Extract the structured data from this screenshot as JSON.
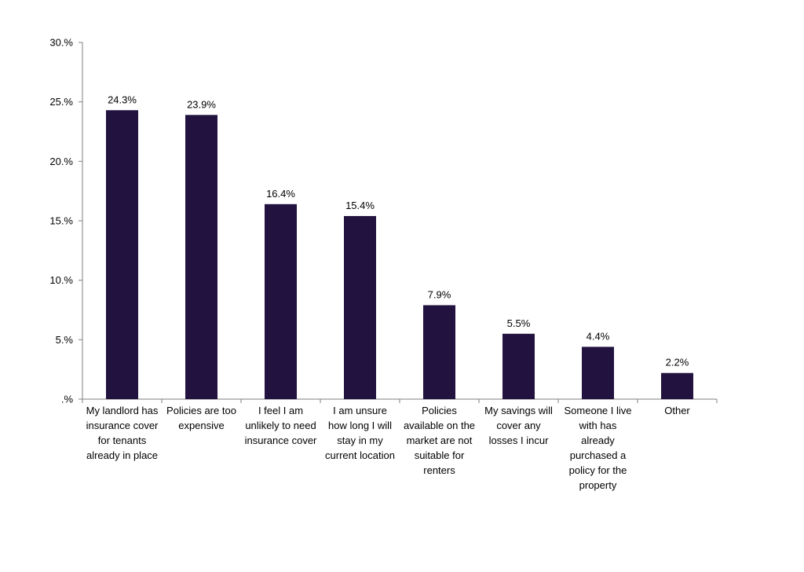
{
  "chart_data": {
    "type": "bar",
    "title": "",
    "xlabel": "",
    "ylabel": "",
    "ylim": [
      0,
      30
    ],
    "y_ticks": [
      0,
      5,
      10,
      15,
      20,
      25,
      30
    ],
    "y_tick_labels": [
      ".%",
      "5.%",
      "10.%",
      "15.%",
      "20.%",
      "25.%",
      "30.%"
    ],
    "grid": false,
    "legend": "none",
    "bar_color": "#22123f",
    "categories": [
      [
        "My landlord has",
        "insurance cover",
        "for tenants",
        "already in place"
      ],
      [
        "Policies are too",
        "expensive"
      ],
      [
        "I feel I am",
        "unlikely to need",
        "insurance cover"
      ],
      [
        "I am unsure",
        "how long I will",
        "stay in my",
        "current location"
      ],
      [
        "Policies",
        "available on the",
        "market are not",
        "suitable for",
        "renters"
      ],
      [
        "My savings will",
        "cover any",
        "losses I incur"
      ],
      [
        "Someone I live",
        "with has",
        "already",
        "purchased a",
        "policy for the",
        "property"
      ],
      [
        "Other"
      ]
    ],
    "values": [
      24.3,
      23.9,
      16.4,
      15.4,
      7.9,
      5.5,
      4.4,
      2.2
    ],
    "value_labels": [
      "24.3%",
      "23.9%",
      "16.4%",
      "15.4%",
      "7.9%",
      "5.5%",
      "4.4%",
      "2.2%"
    ]
  }
}
